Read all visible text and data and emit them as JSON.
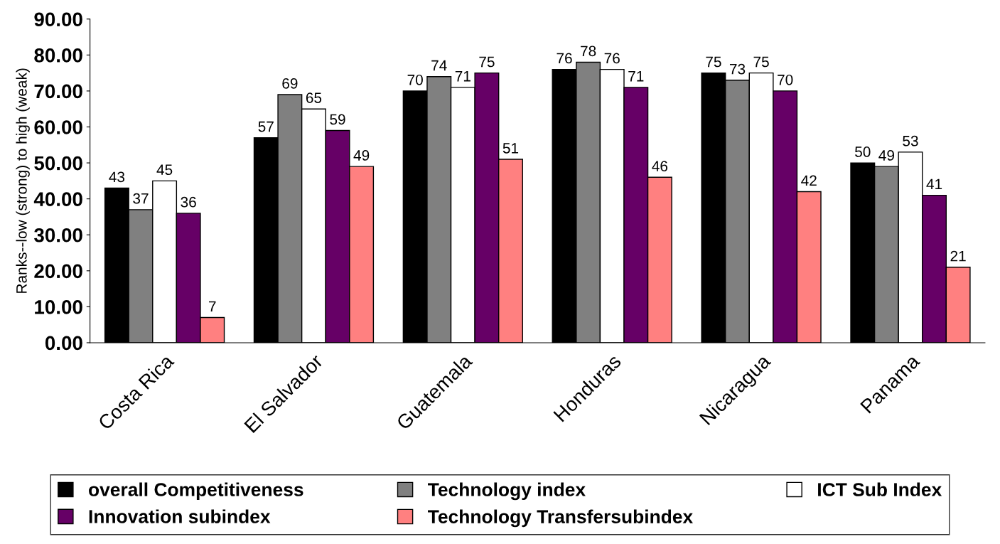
{
  "chart_data": {
    "type": "bar",
    "ylabel": "Ranks--low (strong) to high (weak)",
    "categories": [
      "Costa Rica",
      "El Salvador",
      "Guatemala",
      "Honduras",
      "Nicaragua",
      "Panama"
    ],
    "series": [
      {
        "name": "overall Competitiveness",
        "color": "#000000",
        "values": [
          43,
          57,
          70,
          76,
          75,
          50
        ]
      },
      {
        "name": "Technology index",
        "color": "#808080",
        "values": [
          37,
          69,
          74,
          78,
          73,
          49
        ]
      },
      {
        "name": "ICT Sub Index",
        "color": "#ffffff",
        "values": [
          45,
          65,
          71,
          76,
          75,
          53
        ]
      },
      {
        "name": "Innovation subindex",
        "color": "#660066",
        "values": [
          36,
          59,
          75,
          71,
          70,
          41
        ]
      },
      {
        "name": "Technology Transfersubindex",
        "color": "#ff8080",
        "values": [
          7,
          49,
          51,
          46,
          42,
          21
        ]
      }
    ],
    "ylim": [
      0,
      90
    ],
    "yticks": [
      {
        "value": 0,
        "label": "0.00"
      },
      {
        "value": 10,
        "label": "10.00"
      },
      {
        "value": 20,
        "label": "20.00"
      },
      {
        "value": 30,
        "label": "30.00"
      },
      {
        "value": 40,
        "label": "40.00"
      },
      {
        "value": 50,
        "label": "50.00"
      },
      {
        "value": 60,
        "label": "60.00"
      },
      {
        "value": 70,
        "label": "70.00"
      },
      {
        "value": 80,
        "label": "80.00"
      },
      {
        "value": 90,
        "label": "90.00"
      }
    ],
    "data_labels": true,
    "grid": false,
    "legend": "bottom"
  }
}
